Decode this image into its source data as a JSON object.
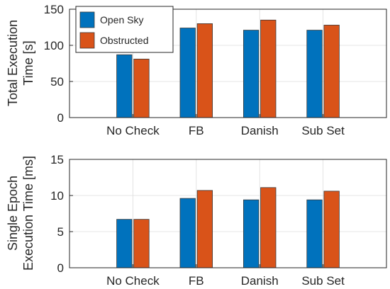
{
  "colors": {
    "open_sky": "#0072BD",
    "obstructed": "#D95319"
  },
  "legend": {
    "items": [
      "Open Sky",
      "Obstructed"
    ]
  },
  "chart_data": [
    {
      "type": "bar",
      "ylabel_lines": [
        "Total Execution",
        "Time [s]"
      ],
      "categories": [
        "No Check",
        "FB",
        "Danish",
        "Sub Set"
      ],
      "ylim": [
        0,
        150
      ],
      "yticks": [
        "0",
        "50",
        "100",
        "150"
      ],
      "grid": true,
      "legend_position": "top-left",
      "series": [
        {
          "name": "Open Sky",
          "values": [
            87,
            124,
            121,
            121
          ]
        },
        {
          "name": "Obstructed",
          "values": [
            81,
            130,
            135,
            128
          ]
        }
      ]
    },
    {
      "type": "bar",
      "ylabel_lines": [
        "Single Epoch",
        "Execution Time [ms]"
      ],
      "categories": [
        "No Check",
        "FB",
        "Danish",
        "Sub Set"
      ],
      "ylim": [
        0,
        15
      ],
      "yticks": [
        "0",
        "5",
        "10",
        "15"
      ],
      "grid": true,
      "series": [
        {
          "name": "Open Sky",
          "values": [
            6.7,
            9.6,
            9.4,
            9.4
          ]
        },
        {
          "name": "Obstructed",
          "values": [
            6.7,
            10.7,
            11.1,
            10.6
          ]
        }
      ]
    }
  ]
}
